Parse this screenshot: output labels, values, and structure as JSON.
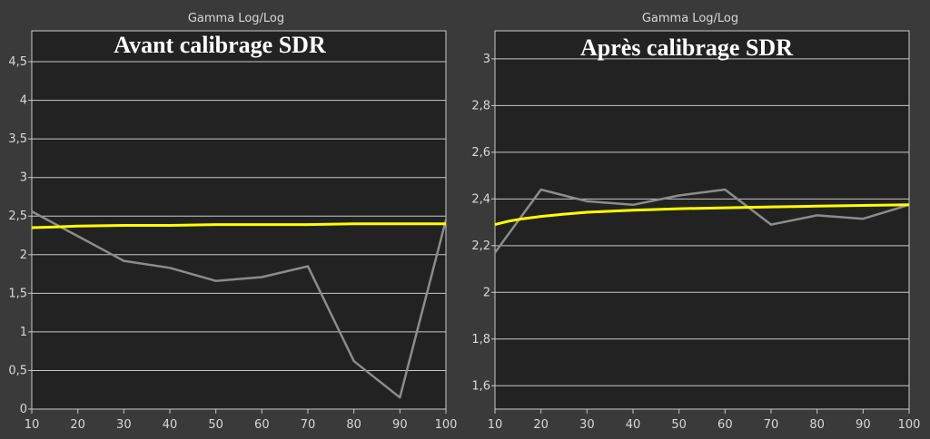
{
  "chart_data": [
    {
      "type": "line",
      "title": "Gamma Log/Log",
      "overlay_label": "Avant calibrage SDR",
      "x": [
        10,
        20,
        30,
        40,
        50,
        60,
        70,
        80,
        90,
        100
      ],
      "xticks": [
        "10",
        "20",
        "30",
        "40",
        "50",
        "60",
        "70",
        "80",
        "90",
        "100"
      ],
      "xlim": [
        10,
        100
      ],
      "ylim": [
        0,
        4.9
      ],
      "yticks": [
        0,
        0.5,
        1,
        1.5,
        2,
        2.5,
        3,
        3.5,
        4,
        4.5
      ],
      "ytick_labels": [
        "0",
        "0,5",
        "1",
        "1,5",
        "2",
        "2,5",
        "3",
        "3,5",
        "4",
        "4,5"
      ],
      "grid": true,
      "series": [
        {
          "role": "target",
          "color": "#ffff00",
          "x": [
            10,
            15,
            20,
            30,
            40,
            50,
            60,
            70,
            80,
            90,
            100
          ],
          "values": [
            2.35,
            2.36,
            2.37,
            2.38,
            2.38,
            2.39,
            2.39,
            2.39,
            2.4,
            2.4,
            2.4
          ]
        },
        {
          "role": "measured",
          "color": "#8c8c8c",
          "x": [
            10,
            20,
            30,
            40,
            50,
            60,
            70,
            80,
            90,
            100
          ],
          "values": [
            2.56,
            2.24,
            1.92,
            1.83,
            1.66,
            1.71,
            1.85,
            0.62,
            0.15,
            2.45
          ]
        }
      ]
    },
    {
      "type": "line",
      "title": "Gamma Log/Log",
      "overlay_label": "Après calibrage SDR",
      "x": [
        10,
        20,
        30,
        40,
        50,
        60,
        70,
        80,
        90,
        100
      ],
      "xticks": [
        "10",
        "20",
        "30",
        "40",
        "50",
        "60",
        "70",
        "80",
        "90",
        "100"
      ],
      "xlim": [
        10,
        100
      ],
      "ylim": [
        1.5,
        3.12
      ],
      "yticks": [
        1.6,
        1.8,
        2.0,
        2.2,
        2.4,
        2.6,
        2.8,
        3.0
      ],
      "ytick_labels": [
        "1,6",
        "1,8",
        "2",
        "2,2",
        "2,4",
        "2,6",
        "2,8",
        "3"
      ],
      "grid": true,
      "series": [
        {
          "role": "target",
          "color": "#ffff00",
          "x": [
            10,
            13,
            16,
            20,
            25,
            30,
            40,
            50,
            60,
            70,
            80,
            90,
            100
          ],
          "values": [
            2.29,
            2.305,
            2.315,
            2.325,
            2.335,
            2.343,
            2.352,
            2.358,
            2.362,
            2.366,
            2.369,
            2.372,
            2.375
          ]
        },
        {
          "role": "measured",
          "color": "#8c8c8c",
          "x": [
            10,
            20,
            30,
            40,
            50,
            60,
            70,
            80,
            90,
            100
          ],
          "values": [
            2.17,
            2.44,
            2.39,
            2.375,
            2.415,
            2.44,
            2.29,
            2.33,
            2.315,
            2.375
          ]
        }
      ]
    }
  ]
}
